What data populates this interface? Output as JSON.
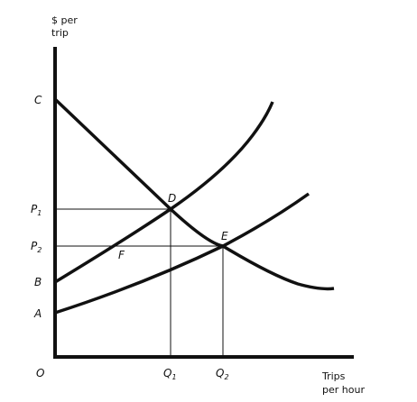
{
  "axes": {
    "y_label_line1": "$ per",
    "y_label_line2": "trip",
    "x_label_line1": "Trips",
    "x_label_line2": "per hour",
    "origin": "O"
  },
  "price_labels": {
    "c": "C",
    "p1": "P",
    "p1_sub": "1",
    "p2": "P",
    "p2_sub": "2",
    "b": "B",
    "a": "A"
  },
  "quantity_labels": {
    "q1": "Q",
    "q1_sub": "1",
    "q2": "Q",
    "q2_sub": "2"
  },
  "points": {
    "d": "D",
    "e": "E",
    "f": "F"
  }
}
